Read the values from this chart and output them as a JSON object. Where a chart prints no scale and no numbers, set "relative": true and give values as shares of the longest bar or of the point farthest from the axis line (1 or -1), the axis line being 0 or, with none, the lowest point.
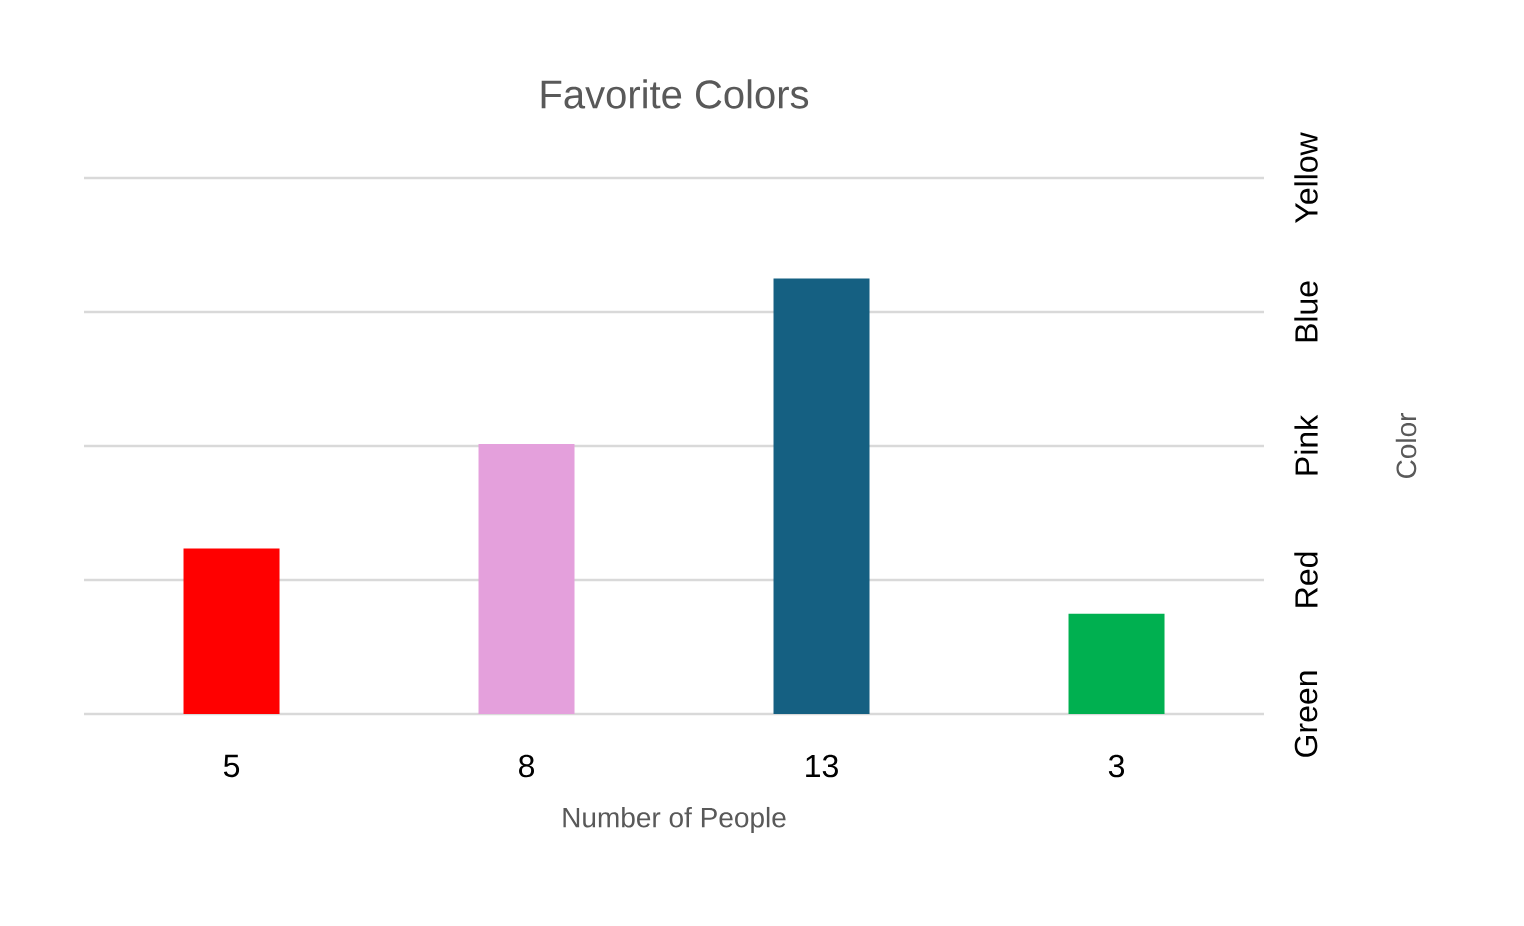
{
  "chart_data": {
    "type": "bar",
    "title": "Favorite Colors",
    "xlabel": "Number of People",
    "ylabel": "Color",
    "categories": [
      "5",
      "8",
      "13",
      "3"
    ],
    "values": [
      0.38,
      0.62,
      1,
      0.23
    ],
    "colors": [
      "#ff0000",
      "#e4a0dc",
      "#156082",
      "#00b050"
    ],
    "relative": true,
    "annotations": [
      "Green",
      "Red",
      "Pink",
      "Blue",
      "Yellow"
    ],
    "grid": "y"
  }
}
